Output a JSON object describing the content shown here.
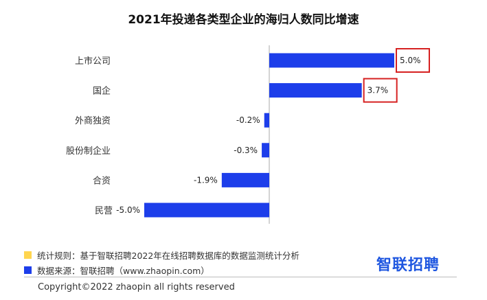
{
  "title": "2021年投递各类型企业的海归人数同比增速",
  "colors": {
    "bar": "#1d3eea",
    "highlight_box": "#d62020",
    "legend_rule": "#ffd54f",
    "legend_source": "#1d3eea",
    "axis": "#aaaaaa"
  },
  "chart_data": {
    "type": "bar",
    "orientation": "horizontal",
    "title": "2021年投递各类型企业的海归人数同比增速",
    "categories": [
      "上市公司",
      "国企",
      "外商独资",
      "股份制企业",
      "合资",
      "民营"
    ],
    "values": [
      5.0,
      3.7,
      -0.2,
      -0.3,
      -1.9,
      -5.0
    ],
    "value_labels": [
      "5.0%",
      "3.7%",
      "-0.2%",
      "-0.3%",
      "-1.9%",
      "-5.0%"
    ],
    "unit": "%",
    "xlim": [
      -5.0,
      5.0
    ],
    "highlighted": [
      "上市公司",
      "国企"
    ],
    "grid": false,
    "legend": "none"
  },
  "legend": [
    {
      "icon": "yellow-square-icon",
      "text": "统计规则：基于智联招聘2022年在线招聘数据库的数据监测统计分析"
    },
    {
      "icon": "blue-square-icon",
      "text": "数据来源：智联招聘（www.zhaopin.com）"
    }
  ],
  "logo": "智联招聘",
  "copyright": "Copyright©2022 zhaopin all rights reserved"
}
